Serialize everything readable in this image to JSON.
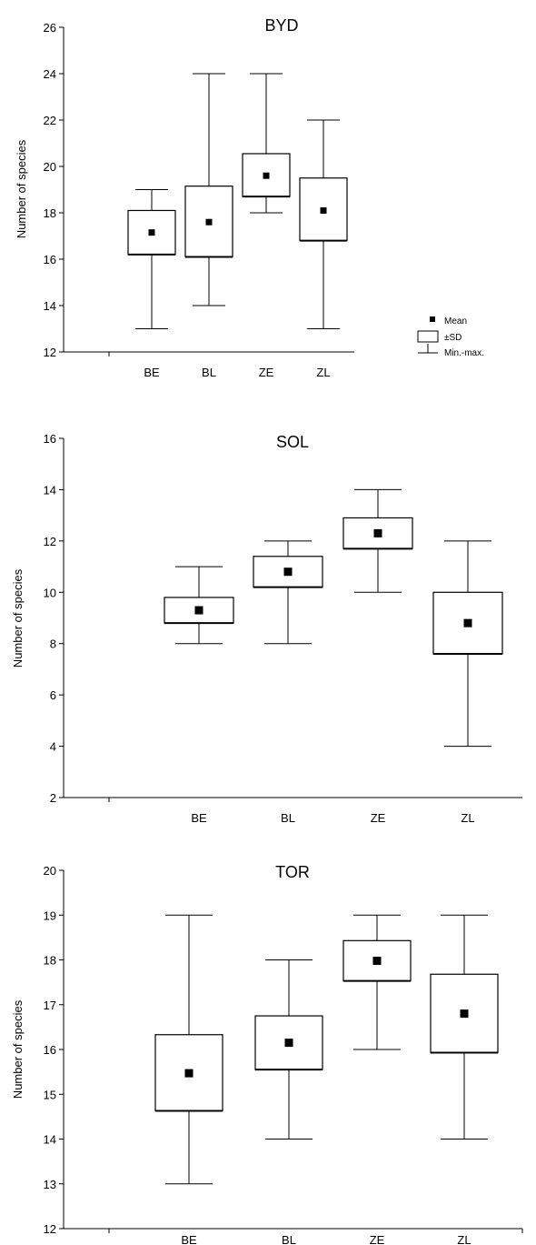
{
  "chart_data": [
    {
      "type": "box",
      "title": "BYD",
      "ylabel": "Number of species",
      "ylim": [
        12,
        26
      ],
      "yticks": [
        12,
        14,
        16,
        18,
        20,
        22,
        24,
        26
      ],
      "categories": [
        "BE",
        "BL",
        "ZE",
        "ZL"
      ],
      "series": [
        {
          "category": "BE",
          "mean": 17.15,
          "sd_low": 16.2,
          "sd_high": 18.1,
          "min": 13,
          "max": 19
        },
        {
          "category": "BL",
          "mean": 17.6,
          "sd_low": 16.1,
          "sd_high": 19.15,
          "min": 14,
          "max": 24
        },
        {
          "category": "ZE",
          "mean": 19.6,
          "sd_low": 18.7,
          "sd_high": 20.55,
          "min": 18,
          "max": 24
        },
        {
          "category": "ZL",
          "mean": 18.1,
          "sd_low": 16.8,
          "sd_high": 19.5,
          "min": 13,
          "max": 22
        }
      ],
      "legend": {
        "position": "right",
        "entries": [
          "Mean",
          "±SD",
          "Min.-max."
        ]
      }
    },
    {
      "type": "box",
      "title": "SOL",
      "ylabel": "Number of species",
      "ylim": [
        2,
        16
      ],
      "yticks": [
        2,
        4,
        6,
        8,
        10,
        12,
        14,
        16
      ],
      "categories": [
        "BE",
        "BL",
        "ZE",
        "ZL"
      ],
      "series": [
        {
          "category": "BE",
          "mean": 9.3,
          "sd_low": 8.8,
          "sd_high": 9.8,
          "min": 8,
          "max": 11
        },
        {
          "category": "BL",
          "mean": 10.8,
          "sd_low": 10.2,
          "sd_high": 11.4,
          "min": 8,
          "max": 12
        },
        {
          "category": "ZE",
          "mean": 12.3,
          "sd_low": 11.7,
          "sd_high": 12.9,
          "min": 10,
          "max": 14
        },
        {
          "category": "ZL",
          "mean": 8.8,
          "sd_low": 7.6,
          "sd_high": 10.0,
          "min": 4,
          "max": 12
        }
      ]
    },
    {
      "type": "box",
      "title": "TOR",
      "ylabel": "Number of species",
      "ylim": [
        12,
        20
      ],
      "yticks": [
        12,
        13,
        14,
        15,
        16,
        17,
        18,
        19,
        20
      ],
      "categories": [
        "BE",
        "BL",
        "ZE",
        "ZL"
      ],
      "series": [
        {
          "category": "BE",
          "mean": 15.47,
          "sd_low": 14.63,
          "sd_high": 16.33,
          "min": 13,
          "max": 19
        },
        {
          "category": "BL",
          "mean": 16.15,
          "sd_low": 15.55,
          "sd_high": 16.75,
          "min": 14,
          "max": 18
        },
        {
          "category": "ZE",
          "mean": 17.98,
          "sd_low": 17.53,
          "sd_high": 18.43,
          "min": 16,
          "max": 19
        },
        {
          "category": "ZL",
          "mean": 16.8,
          "sd_low": 15.93,
          "sd_high": 17.68,
          "min": 14,
          "max": 19
        }
      ]
    }
  ]
}
